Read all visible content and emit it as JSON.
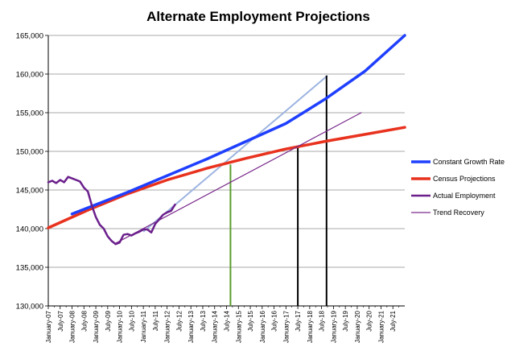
{
  "chart_data": {
    "type": "line",
    "title": "Alternate Employment Projections",
    "xlabel": "",
    "ylabel": "",
    "ylim": [
      130000,
      165000
    ],
    "yticks": [
      "130,000",
      "135,000",
      "140,000",
      "145,000",
      "150,000",
      "155,000",
      "160,000",
      "165,000"
    ],
    "ytick_values": [
      130000,
      135000,
      140000,
      145000,
      150000,
      155000,
      160000,
      165000
    ],
    "xticks": [
      "January-07",
      "July-07",
      "January-08",
      "July-08",
      "January-09",
      "July-09",
      "January-10",
      "July-10",
      "January-11",
      "July-11",
      "January-12",
      "July-12",
      "January-13",
      "July-13",
      "January-14",
      "July-14",
      "January-15",
      "July-15",
      "January-16",
      "July-16",
      "January-17",
      "July-17",
      "January-18",
      "July-18",
      "January-19",
      "July-19",
      "January-20",
      "July-20",
      "January-21",
      "July-21"
    ],
    "x_unit": "months since January-07",
    "x_range": [
      0,
      180
    ],
    "grid": "horizontal",
    "legend_position": "right",
    "series": [
      {
        "name": "Constant Growth Rate",
        "color": "#1f3fff",
        "width": 3.5,
        "x": [
          12,
          40,
          80,
          120,
          140,
          160,
          180
        ],
        "y": [
          141900,
          144700,
          149000,
          153600,
          156800,
          160400,
          165000
        ]
      },
      {
        "name": "Census Projections",
        "color": "#e8321e",
        "width": 3.5,
        "x": [
          0,
          20,
          40,
          60,
          80,
          100,
          120,
          140,
          160,
          180
        ],
        "y": [
          140100,
          142400,
          144500,
          146300,
          147800,
          149100,
          150300,
          151300,
          152200,
          153100
        ]
      },
      {
        "name": "Actual Employment",
        "color": "#6b1f8c",
        "width": 2.5,
        "x": [
          0,
          2,
          4,
          6,
          8,
          10,
          12,
          14,
          16,
          18,
          20,
          22,
          24,
          26,
          28,
          30,
          32,
          34,
          36,
          38,
          40,
          42,
          44,
          46,
          48,
          50,
          52,
          54,
          56,
          58,
          60,
          62,
          64
        ],
        "y": [
          146000,
          146200,
          145900,
          146300,
          146000,
          146700,
          146500,
          146300,
          146100,
          145300,
          144800,
          143000,
          141500,
          140500,
          140000,
          139000,
          138400,
          138000,
          138200,
          139200,
          139300,
          139100,
          139400,
          139600,
          139900,
          139900,
          139500,
          140600,
          141200,
          141800,
          142100,
          142300,
          143100
        ]
      },
      {
        "name": "Trend Recovery",
        "color": "#7a2a8c",
        "width": 1.2,
        "x": [
          34,
          158
        ],
        "y": [
          138100,
          155000
        ]
      }
    ],
    "annotation_lines": [
      {
        "color": "#9db4e0",
        "width": 2,
        "x": [
          48,
          141
        ],
        "y": [
          139600,
          159800
        ]
      },
      {
        "color": "#5a9e2f",
        "width": 2,
        "x": [
          92,
          92
        ],
        "y": [
          148300,
          130000
        ]
      },
      {
        "color": "#000000",
        "width": 2,
        "x": [
          126,
          126
        ],
        "y": [
          150600,
          130000
        ]
      },
      {
        "color": "#000000",
        "width": 2,
        "x": [
          140.5,
          140.5
        ],
        "y": [
          159800,
          130000
        ]
      }
    ]
  }
}
